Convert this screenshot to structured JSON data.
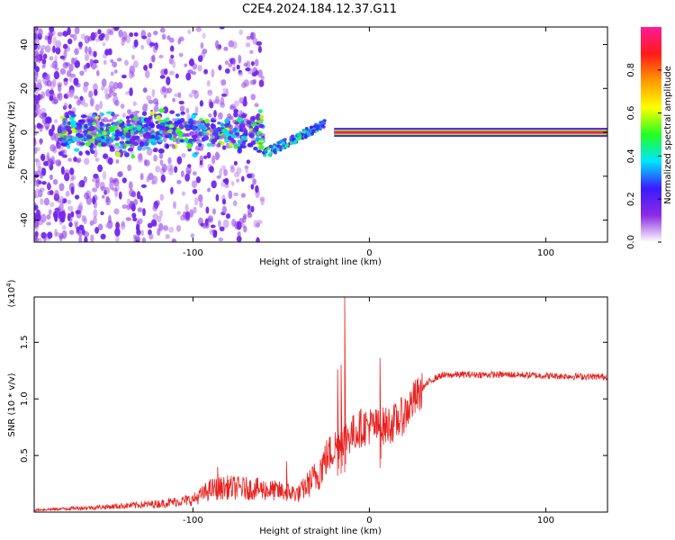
{
  "title": "C2E4.2024.184.12.37.G11",
  "chart_data": [
    {
      "type": "heatmap",
      "xlabel": "Height of straight line (km)",
      "ylabel": "Frequency (Hz)",
      "xlim": [
        -190,
        135
      ],
      "ylim": [
        -50,
        48
      ],
      "xticks": [
        "-100",
        "0",
        "100"
      ],
      "yticks": [
        "-40",
        "-20",
        "0",
        "20",
        "40"
      ],
      "colorbar": {
        "label": "Normalized spectral amplitude",
        "range": [
          0,
          1
        ],
        "ticks": [
          "0.0",
          "0.2",
          "0.4",
          "0.6",
          "0.8"
        ],
        "colors": [
          "#ffffff",
          "#8a2be2",
          "#3a1aff",
          "#00e5ff",
          "#22ff22",
          "#ffff00",
          "#ff9900",
          "#ff1a1a",
          "#ff1a99"
        ]
      },
      "structures": [
        {
          "name": "noisy band",
          "x_range": [
            -175,
            -60
          ],
          "center_freq": 0,
          "freq_halfwidth": 8
        },
        {
          "name": "diagonal streak",
          "points": [
            [
              -60,
              -10
            ],
            [
              -25,
              4
            ]
          ]
        },
        {
          "name": "steady line",
          "x_range": [
            -20,
            135
          ],
          "freq": 0,
          "amplitude": 0.95
        }
      ]
    },
    {
      "type": "line",
      "xlabel": "Height of straight line (km)",
      "ylabel": "SNR (10 * v/v)",
      "multiplier": "(x10^4)",
      "xlim": [
        -190,
        135
      ],
      "ylim": [
        0,
        1.9
      ],
      "xticks": [
        "-100",
        "0",
        "100"
      ],
      "yticks": [
        "0.5",
        "1.0",
        "1.5"
      ],
      "color": "#e8211f",
      "envelope": [
        {
          "x": -190,
          "y": 0.02
        },
        {
          "x": -150,
          "y": 0.05
        },
        {
          "x": -120,
          "y": 0.08
        },
        {
          "x": -100,
          "y": 0.12
        },
        {
          "x": -90,
          "y": 0.22
        },
        {
          "x": -80,
          "y": 0.24
        },
        {
          "x": -60,
          "y": 0.22
        },
        {
          "x": -50,
          "y": 0.2
        },
        {
          "x": -40,
          "y": 0.18
        },
        {
          "x": -30,
          "y": 0.35
        },
        {
          "x": -25,
          "y": 0.5
        },
        {
          "x": -20,
          "y": 0.6
        },
        {
          "x": -15,
          "y": 0.7
        },
        {
          "x": -10,
          "y": 0.72
        },
        {
          "x": -5,
          "y": 0.78
        },
        {
          "x": 0,
          "y": 0.8
        },
        {
          "x": 5,
          "y": 0.78
        },
        {
          "x": 10,
          "y": 0.8
        },
        {
          "x": 15,
          "y": 0.83
        },
        {
          "x": 20,
          "y": 0.9
        },
        {
          "x": 25,
          "y": 1.02
        },
        {
          "x": 30,
          "y": 1.1
        },
        {
          "x": 35,
          "y": 1.17
        },
        {
          "x": 40,
          "y": 1.21
        },
        {
          "x": 50,
          "y": 1.22
        },
        {
          "x": 80,
          "y": 1.22
        },
        {
          "x": 100,
          "y": 1.21
        },
        {
          "x": 135,
          "y": 1.2
        }
      ],
      "spikes": [
        {
          "x": -14,
          "y": 1.9
        },
        {
          "x": -16,
          "y": 1.3
        },
        {
          "x": -18,
          "y": 1.26
        },
        {
          "x": 6,
          "y": 1.36
        },
        {
          "x": -47,
          "y": 0.45
        },
        {
          "x": -86,
          "y": 0.4
        }
      ]
    }
  ]
}
